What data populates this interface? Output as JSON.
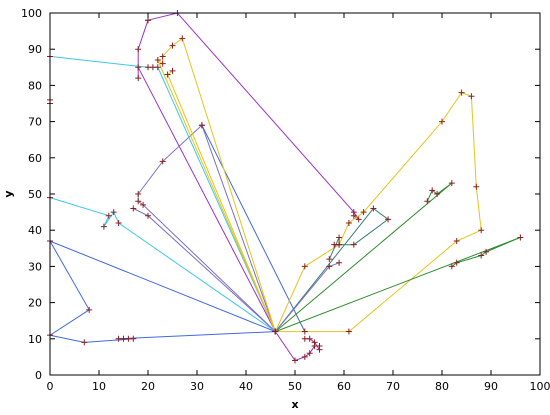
{
  "chart_data": {
    "type": "line",
    "title": "",
    "xlabel": "x",
    "ylabel": "y",
    "xlim": [
      0,
      100
    ],
    "ylim": [
      0,
      100
    ],
    "xticks": [
      0,
      10,
      20,
      30,
      40,
      50,
      60,
      70,
      80,
      90,
      100
    ],
    "yticks": [
      0,
      10,
      20,
      30,
      40,
      50,
      60,
      70,
      80,
      90,
      100
    ],
    "grid": false,
    "legend": "none",
    "colors": {
      "frame": "#000000",
      "marker": "#8b2020",
      "purple": "#9932cc",
      "blue": "#4169e1",
      "cyan": "#3cc8e6",
      "gold": "#e6c31e",
      "green": "#2e8b2e",
      "teal": "#3a7f6f",
      "slate": "#7a70c8"
    },
    "series": [
      {
        "color": "purple",
        "points": [
          [
            20,
            98
          ],
          [
            26,
            100
          ],
          [
            62,
            45
          ],
          [
            63,
            43
          ],
          [
            62,
            44
          ]
        ]
      },
      {
        "color": "purple",
        "points": [
          [
            46,
            12
          ],
          [
            18,
            85
          ],
          [
            18,
            82
          ],
          [
            18,
            90
          ],
          [
            20,
            98
          ]
        ]
      },
      {
        "color": "slate",
        "points": [
          [
            46,
            12
          ],
          [
            19,
            47
          ],
          [
            18,
            48
          ],
          [
            18,
            50
          ],
          [
            23,
            59
          ],
          [
            31,
            69
          ],
          [
            46,
            12
          ]
        ]
      },
      {
        "color": "slate",
        "points": [
          [
            46,
            12
          ],
          [
            20,
            44
          ],
          [
            17,
            46
          ]
        ]
      },
      {
        "color": "cyan",
        "points": [
          [
            0,
            88
          ],
          [
            20,
            85
          ],
          [
            21,
            85
          ],
          [
            22,
            85
          ],
          [
            46,
            12
          ]
        ]
      },
      {
        "color": "cyan",
        "points": [
          [
            0,
            49
          ],
          [
            12,
            44
          ],
          [
            11,
            41
          ],
          [
            13,
            45
          ],
          [
            14,
            42
          ],
          [
            46,
            12
          ]
        ]
      },
      {
        "color": "blue",
        "points": [
          [
            0,
            37
          ],
          [
            46,
            12
          ],
          [
            14,
            10
          ],
          [
            15,
            10
          ],
          [
            16,
            10
          ],
          [
            17,
            10
          ],
          [
            7,
            9
          ],
          [
            0,
            11
          ],
          [
            8,
            18
          ],
          [
            0,
            37
          ]
        ]
      },
      {
        "color": "blue",
        "points": [
          [
            31,
            69
          ],
          [
            52,
            12
          ]
        ]
      },
      {
        "color": "gold",
        "points": [
          [
            46,
            12
          ],
          [
            22,
            87
          ],
          [
            23,
            86
          ],
          [
            23,
            88
          ],
          [
            25,
            91
          ],
          [
            27,
            93
          ],
          [
            46,
            12
          ]
        ]
      },
      {
        "color": "gold",
        "points": [
          [
            46,
            12
          ],
          [
            24,
            83
          ],
          [
            25,
            84
          ]
        ]
      },
      {
        "color": "gold",
        "points": [
          [
            46,
            12
          ],
          [
            52,
            30
          ],
          [
            59,
            36
          ],
          [
            61,
            42
          ],
          [
            64,
            45
          ],
          [
            80,
            70
          ],
          [
            84,
            78
          ],
          [
            86,
            77
          ],
          [
            87,
            52
          ],
          [
            88,
            40
          ],
          [
            83,
            37
          ],
          [
            61,
            12
          ],
          [
            46,
            12
          ]
        ]
      },
      {
        "color": "green",
        "points": [
          [
            46,
            12
          ],
          [
            96,
            38
          ],
          [
            89,
            34
          ],
          [
            88,
            33
          ],
          [
            83,
            31
          ],
          [
            82,
            30
          ]
        ]
      },
      {
        "color": "green",
        "points": [
          [
            46,
            12
          ],
          [
            82,
            53
          ],
          [
            79,
            50
          ],
          [
            78,
            51
          ],
          [
            77,
            48
          ]
        ]
      },
      {
        "color": "teal",
        "points": [
          [
            46,
            12
          ],
          [
            66,
            46
          ],
          [
            69,
            43
          ],
          [
            62,
            36
          ],
          [
            58,
            36
          ],
          [
            59,
            36
          ],
          [
            59,
            38
          ],
          [
            57,
            32
          ]
        ]
      },
      {
        "color": "purple",
        "points": [
          [
            46,
            12
          ],
          [
            50,
            4
          ],
          [
            52,
            5
          ],
          [
            53,
            6
          ],
          [
            54,
            8
          ],
          [
            55,
            8
          ],
          [
            55,
            7
          ],
          [
            54,
            9
          ],
          [
            53,
            10
          ],
          [
            52,
            10
          ]
        ]
      },
      {
        "color": "slate",
        "points": [
          [
            46,
            12
          ],
          [
            57,
            30
          ],
          [
            59,
            31
          ]
        ]
      }
    ],
    "extra_markers": [
      [
        0,
        75
      ],
      [
        0,
        76
      ]
    ]
  }
}
